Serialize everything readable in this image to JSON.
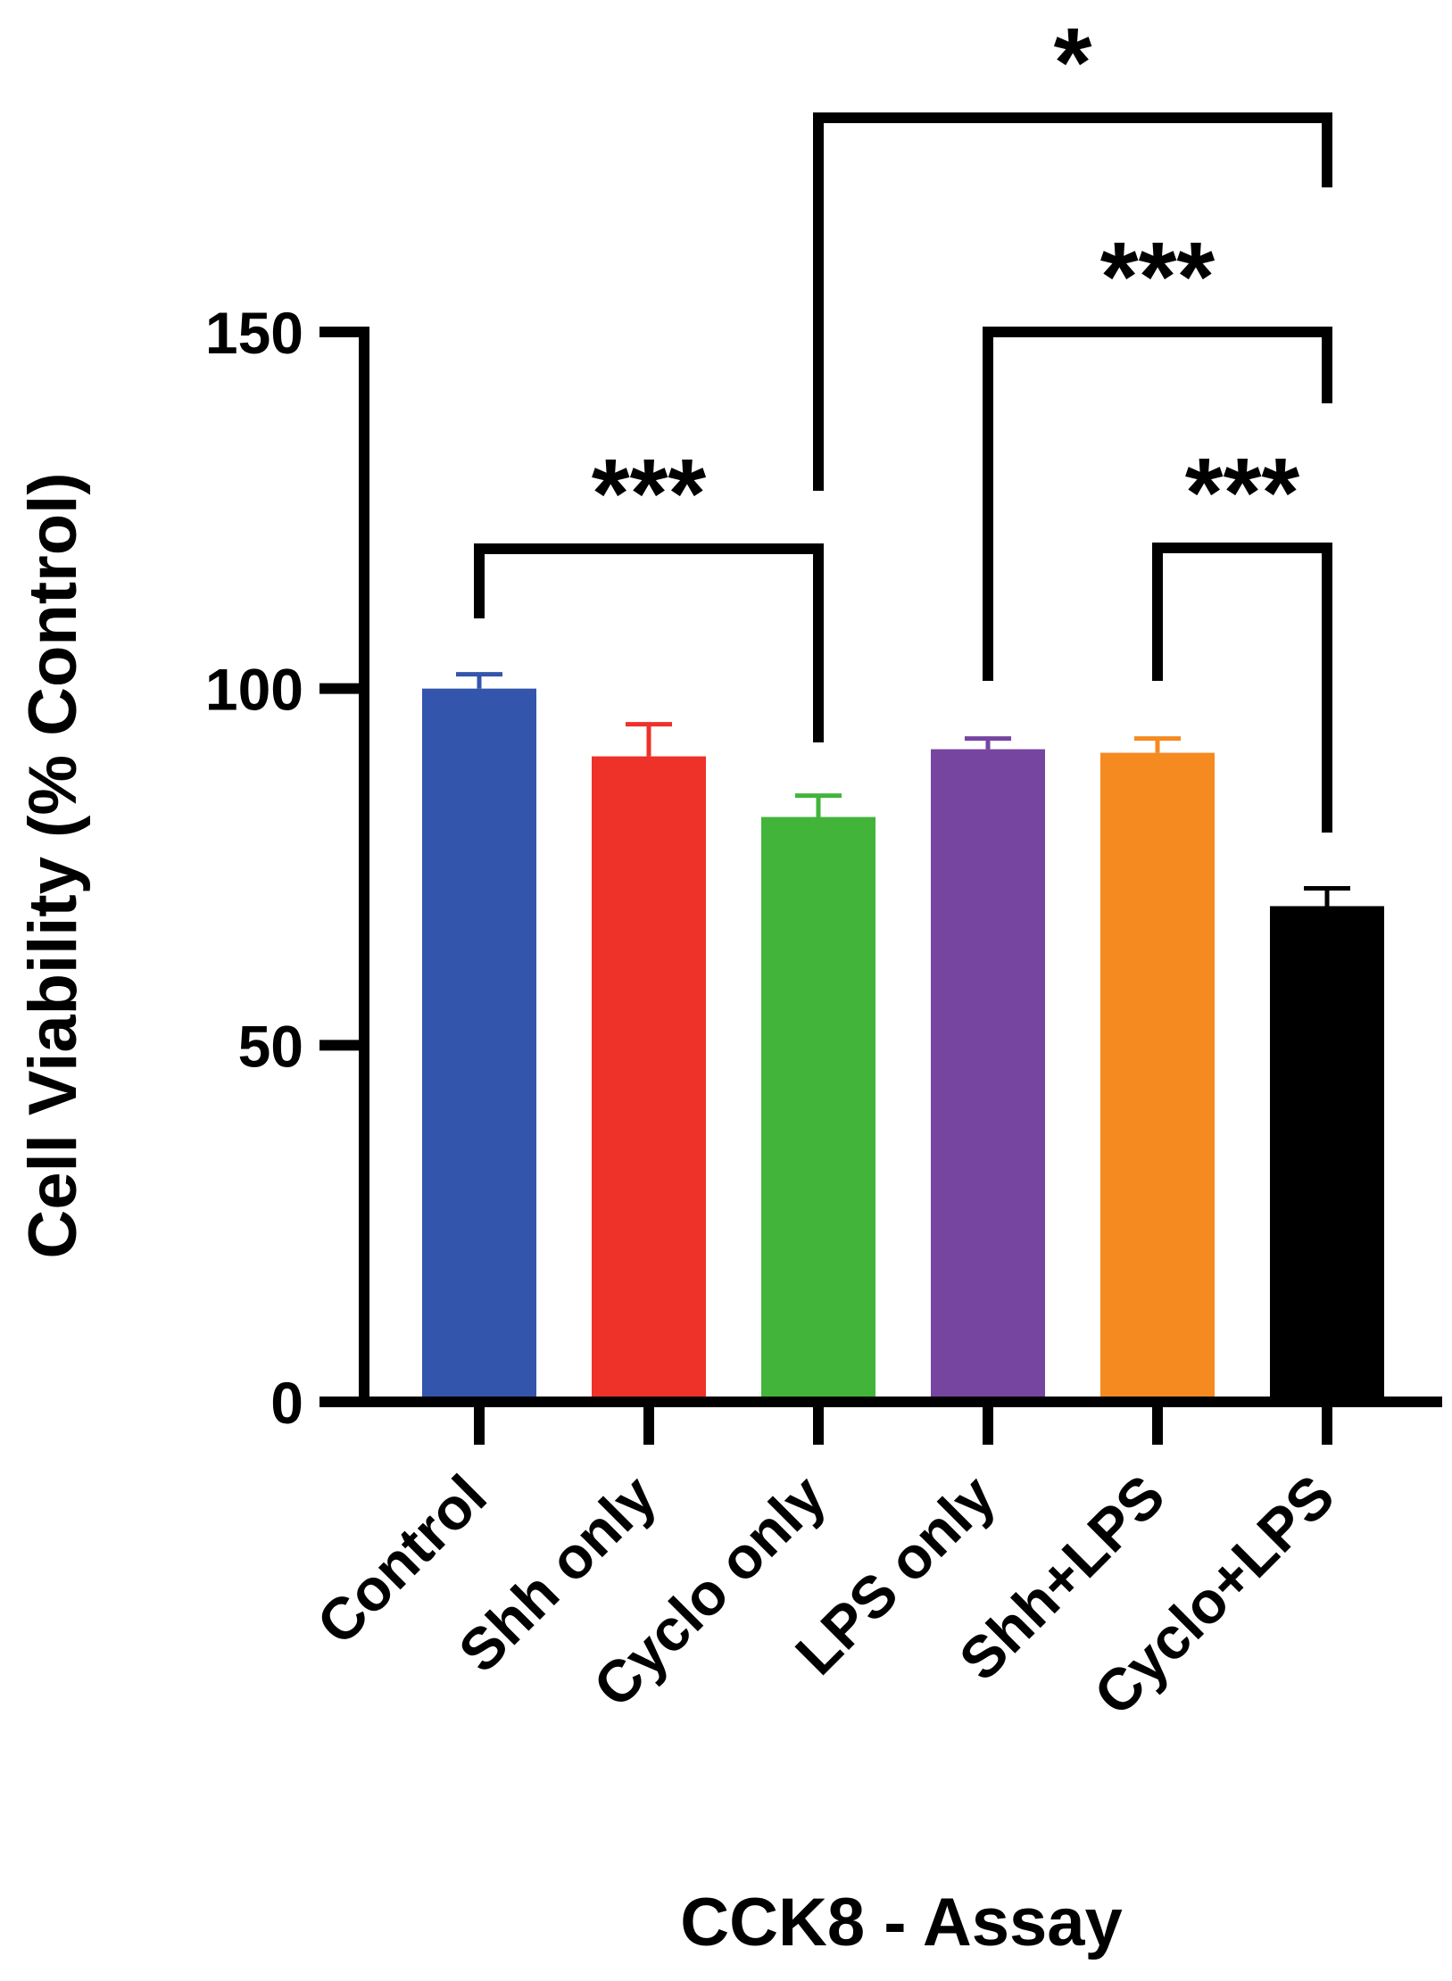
{
  "chart_data": {
    "type": "bar",
    "title": "",
    "xlabel": "CCK8 - Assay",
    "ylabel": "Cell Viability (% Control)",
    "ylim": [
      0,
      150
    ],
    "yticks": [
      0,
      50,
      100,
      150
    ],
    "grid": false,
    "categories": [
      "Control",
      "Shh only",
      "Cyclo only",
      "LPS only",
      "Shh+LPS",
      "Cyclo+LPS"
    ],
    "values": [
      100,
      90.5,
      82,
      91.5,
      91,
      69.5
    ],
    "errors": [
      2,
      4.5,
      3,
      1.5,
      2,
      2.5
    ],
    "colors": [
      "#3355ac",
      "#ee3129",
      "#42b43a",
      "#7645a0",
      "#f58a21",
      "#000000"
    ],
    "significance": [
      {
        "from": "Control",
        "to": "Cyclo only",
        "label": "***"
      },
      {
        "from": "Cyclo only",
        "to": "Cyclo+LPS",
        "label": "*"
      },
      {
        "from": "LPS only",
        "to": "Cyclo+LPS",
        "label": "***"
      },
      {
        "from": "Shh+LPS",
        "to": "Cyclo+LPS",
        "label": "***"
      }
    ]
  }
}
